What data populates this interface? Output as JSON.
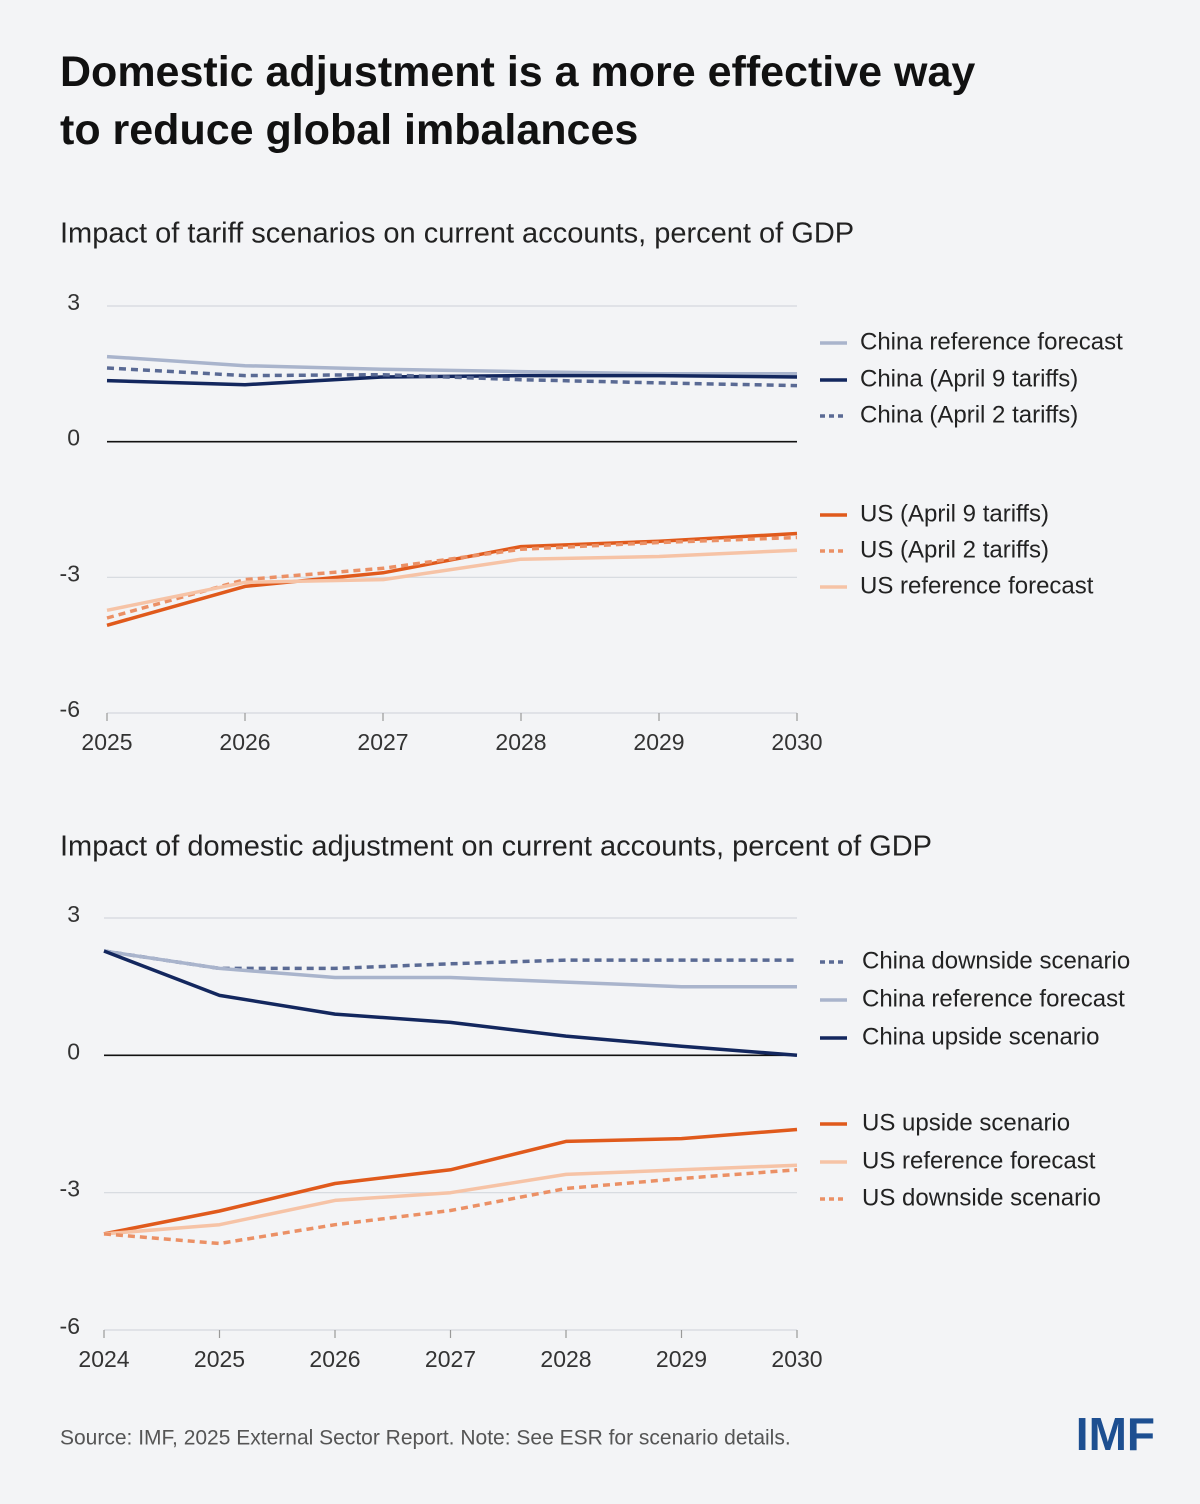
{
  "title": "Domestic adjustment is a more effective way to reduce global imbalances",
  "source": "Source: IMF, 2025 External Sector Report. Note: See ESR for scenario details.",
  "logo": "IMF",
  "chart_data": [
    {
      "type": "line",
      "title": "Impact of tariff scenarios on current accounts, percent of GDP",
      "x": [
        2025,
        2026,
        2027,
        2028,
        2029,
        2030
      ],
      "xlim": [
        2025,
        2030
      ],
      "xticks": [
        2025,
        2026,
        2027,
        2028,
        2029,
        2030
      ],
      "ylim": [
        -6,
        3
      ],
      "yticks": [
        -6,
        -3,
        0,
        3
      ],
      "grid": true,
      "series": [
        {
          "name": "China reference forecast",
          "color": "#a9b4cc",
          "linestyle": "solid",
          "values": [
            1.88,
            1.68,
            1.6,
            1.55,
            1.5,
            1.5
          ]
        },
        {
          "name": "China (April 9 tariffs)",
          "color": "#13275e",
          "linestyle": "solid",
          "values": [
            1.35,
            1.26,
            1.43,
            1.46,
            1.46,
            1.43
          ]
        },
        {
          "name": "China (April 2 tariffs)",
          "color": "#5a6a94",
          "linestyle": "dashed",
          "values": [
            1.63,
            1.46,
            1.48,
            1.37,
            1.3,
            1.24
          ]
        },
        {
          "name": "US (April 9 tariffs)",
          "color": "#e05a1c",
          "linestyle": "solid",
          "values": [
            -4.06,
            -3.2,
            -2.9,
            -2.32,
            -2.2,
            -2.03
          ]
        },
        {
          "name": "US (April 2 tariffs)",
          "color": "#eb9065",
          "linestyle": "dashed",
          "values": [
            -3.9,
            -3.05,
            -2.8,
            -2.38,
            -2.23,
            -2.12
          ]
        },
        {
          "name": "US reference forecast",
          "color": "#f6c3a6",
          "linestyle": "solid",
          "values": [
            -3.73,
            -3.11,
            -3.05,
            -2.6,
            -2.54,
            -2.4
          ]
        }
      ]
    },
    {
      "type": "line",
      "title": "Impact of domestic adjustment on current accounts, percent of GDP",
      "x": [
        2024,
        2025,
        2026,
        2027,
        2028,
        2029,
        2030
      ],
      "xlim": [
        2024,
        2030
      ],
      "xticks": [
        2024,
        2025,
        2026,
        2027,
        2028,
        2029,
        2030
      ],
      "ylim": [
        -6,
        3
      ],
      "yticks": [
        -6,
        -3,
        0,
        3
      ],
      "grid": true,
      "series": [
        {
          "name": "China downside scenario",
          "color": "#5a6a94",
          "linestyle": "dashed",
          "values": [
            2.28,
            1.9,
            1.9,
            2.0,
            2.08,
            2.08,
            2.08
          ]
        },
        {
          "name": "China reference forecast",
          "color": "#a9b4cc",
          "linestyle": "solid",
          "values": [
            2.28,
            1.9,
            1.7,
            1.7,
            1.6,
            1.5,
            1.5
          ]
        },
        {
          "name": "China upside scenario",
          "color": "#13275e",
          "linestyle": "solid",
          "values": [
            2.28,
            1.31,
            0.9,
            0.72,
            0.42,
            0.2,
            0
          ]
        },
        {
          "name": "US upside scenario",
          "color": "#e05a1c",
          "linestyle": "solid",
          "values": [
            -3.9,
            -3.4,
            -2.8,
            -2.5,
            -1.88,
            -1.82,
            -1.62
          ]
        },
        {
          "name": "US reference forecast",
          "color": "#f6c3a6",
          "linestyle": "solid",
          "values": [
            -3.9,
            -3.7,
            -3.17,
            -3.0,
            -2.6,
            -2.5,
            -2.4
          ]
        },
        {
          "name": "US downside scenario",
          "color": "#eb9065",
          "linestyle": "dashed",
          "values": [
            -3.9,
            -4.11,
            -3.7,
            -3.39,
            -2.91,
            -2.69,
            -2.5
          ]
        }
      ]
    }
  ]
}
